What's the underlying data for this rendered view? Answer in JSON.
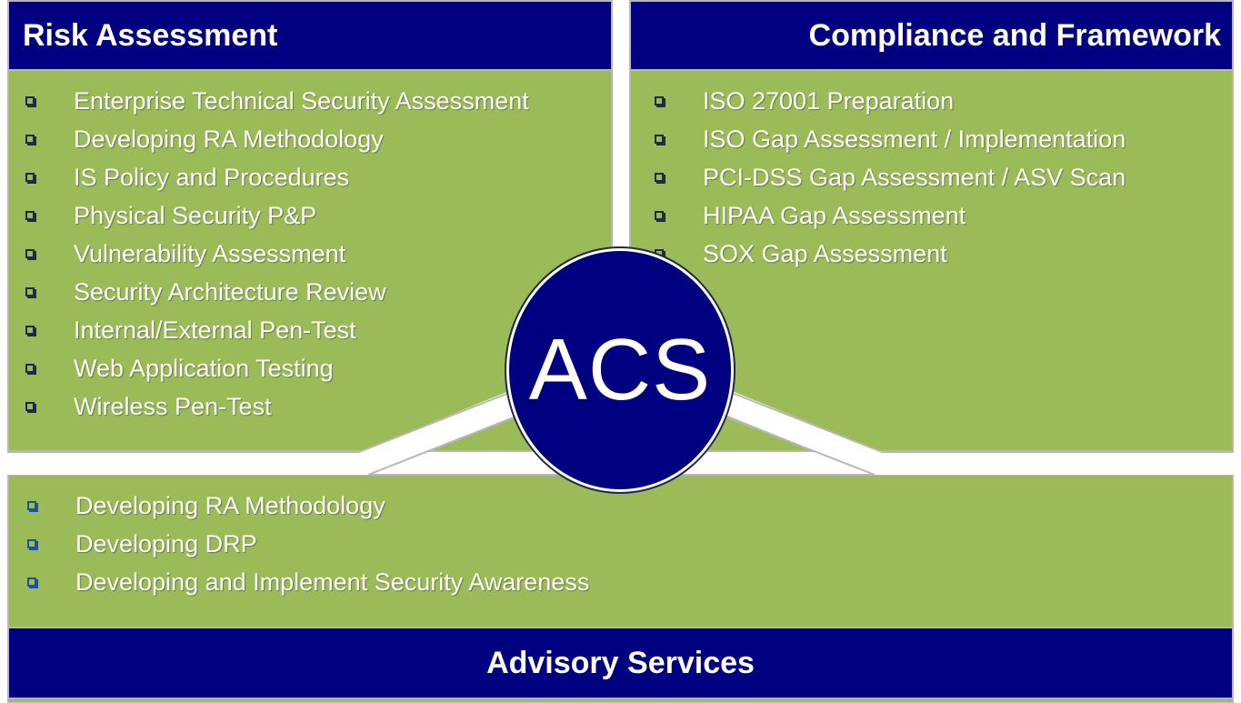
{
  "risk": {
    "title": "Risk Assessment",
    "items": [
      "Enterprise Technical Security Assessment",
      "Developing RA Methodology",
      "IS Policy and Procedures",
      "Physical Security P&P",
      "Vulnerability Assessment",
      "Security Architecture Review",
      "Internal/External Pen-Test",
      "Web Application Testing",
      "Wireless Pen-Test"
    ]
  },
  "compliance": {
    "title": "Compliance and Framework",
    "items": [
      "ISO 27001 Preparation",
      "ISO Gap Assessment / Implementation",
      "PCI-DSS Gap Assessment / ASV Scan",
      "HIPAA Gap Assessment",
      "SOX Gap Assessment"
    ]
  },
  "advisory": {
    "title": "Advisory Services",
    "items": [
      "Developing RA Methodology",
      "Developing DRP",
      "Developing and Implement Security Awareness"
    ]
  },
  "center": {
    "label": "ACS"
  },
  "colors": {
    "navy": "#000080",
    "green": "#9bbb59",
    "border": "#b7b7b7"
  }
}
